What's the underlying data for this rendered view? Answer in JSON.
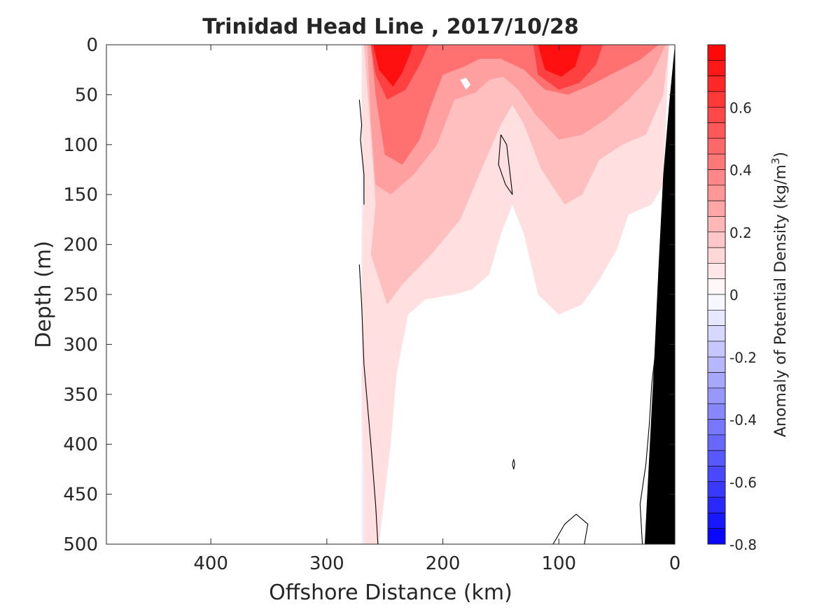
{
  "chart_data": {
    "type": "heatmap",
    "title": "Trinidad Head Line , 2017/10/28",
    "xlabel": "Offshore Distance (km)",
    "ylabel": "Depth (m)",
    "xlim": [
      490,
      0
    ],
    "ylim": [
      500,
      0
    ],
    "x_ticks": [
      400,
      300,
      200,
      100,
      0
    ],
    "y_ticks": [
      0,
      50,
      100,
      150,
      200,
      250,
      300,
      350,
      400,
      450,
      500
    ],
    "colorbar": {
      "label_prefix": "Anomaly of Potential Density (kg/m",
      "label_sup": "3",
      "label_suffix": ")",
      "range": [
        -0.8,
        0.8
      ],
      "tick_values": [
        0.6,
        0.4,
        0.2,
        0,
        -0.2,
        -0.4,
        -0.6,
        -0.8
      ],
      "tick_labels": [
        "0.6",
        "0.4",
        "0.2",
        "0",
        "-0.2",
        "-0.4",
        "-0.6",
        "-0.8"
      ],
      "step": 0.05,
      "color_max": "#ff0000",
      "color_zero": "#ffffff",
      "color_min": "#0000ff"
    },
    "data_extent_x": [
      270,
      0
    ],
    "bathymetry_color": "#000000",
    "bathymetry": [
      [
        0,
        0
      ],
      [
        5,
        60
      ],
      [
        10,
        130
      ],
      [
        14,
        220
      ],
      [
        18,
        320
      ],
      [
        22,
        410
      ],
      [
        26,
        500
      ],
      [
        0,
        500
      ]
    ],
    "anomaly_regions": [
      {
        "level": 0.1,
        "points": [
          [
            270,
            0
          ],
          [
            270,
            500
          ],
          [
            255,
            500
          ],
          [
            245,
            400
          ],
          [
            240,
            330
          ],
          [
            230,
            270
          ],
          [
            215,
            255
          ],
          [
            190,
            250
          ],
          [
            175,
            245
          ],
          [
            160,
            230
          ],
          [
            150,
            190
          ],
          [
            140,
            160
          ],
          [
            130,
            190
          ],
          [
            118,
            250
          ],
          [
            100,
            270
          ],
          [
            80,
            260
          ],
          [
            65,
            235
          ],
          [
            50,
            205
          ],
          [
            40,
            170
          ],
          [
            20,
            160
          ],
          [
            10,
            140
          ],
          [
            5,
            0
          ]
        ]
      },
      {
        "level": 0.2,
        "points": [
          [
            268,
            0
          ],
          [
            262,
            90
          ],
          [
            258,
            160
          ],
          [
            262,
            210
          ],
          [
            248,
            260
          ],
          [
            235,
            240
          ],
          [
            210,
            210
          ],
          [
            185,
            175
          ],
          [
            165,
            120
          ],
          [
            150,
            80
          ],
          [
            140,
            60
          ],
          [
            130,
            80
          ],
          [
            115,
            125
          ],
          [
            95,
            160
          ],
          [
            80,
            150
          ],
          [
            65,
            115
          ],
          [
            45,
            100
          ],
          [
            25,
            90
          ],
          [
            10,
            50
          ],
          [
            5,
            0
          ]
        ]
      },
      {
        "level": 0.3,
        "points": [
          [
            265,
            0
          ],
          [
            262,
            80
          ],
          [
            258,
            140
          ],
          [
            245,
            150
          ],
          [
            225,
            130
          ],
          [
            205,
            100
          ],
          [
            190,
            55
          ],
          [
            172,
            48
          ],
          [
            160,
            35
          ],
          [
            148,
            32
          ],
          [
            135,
            45
          ],
          [
            120,
            70
          ],
          [
            100,
            95
          ],
          [
            80,
            90
          ],
          [
            60,
            75
          ],
          [
            40,
            55
          ],
          [
            20,
            30
          ],
          [
            8,
            0
          ]
        ]
      },
      {
        "level": 0.45,
        "points": [
          [
            262,
            0
          ],
          [
            258,
            50
          ],
          [
            250,
            110
          ],
          [
            235,
            120
          ],
          [
            220,
            95
          ],
          [
            210,
            60
          ],
          [
            200,
            30
          ],
          [
            182,
            22
          ],
          [
            168,
            14
          ],
          [
            150,
            14
          ],
          [
            130,
            25
          ],
          [
            112,
            45
          ],
          [
            92,
            50
          ],
          [
            72,
            40
          ],
          [
            52,
            28
          ],
          [
            30,
            15
          ],
          [
            14,
            0
          ]
        ]
      },
      {
        "level": 0.6,
        "points": [
          [
            262,
            0
          ],
          [
            258,
            30
          ],
          [
            248,
            55
          ],
          [
            232,
            45
          ],
          [
            220,
            20
          ],
          [
            212,
            0
          ]
        ]
      },
      {
        "level": 0.6,
        "points": [
          [
            122,
            0
          ],
          [
            118,
            30
          ],
          [
            100,
            45
          ],
          [
            82,
            38
          ],
          [
            68,
            20
          ],
          [
            62,
            0
          ]
        ]
      },
      {
        "level": 0.75,
        "points": [
          [
            260,
            0
          ],
          [
            255,
            25
          ],
          [
            243,
            42
          ],
          [
            235,
            28
          ],
          [
            228,
            8
          ],
          [
            226,
            0
          ]
        ]
      },
      {
        "level": 0.75,
        "points": [
          [
            118,
            0
          ],
          [
            112,
            25
          ],
          [
            98,
            32
          ],
          [
            86,
            22
          ],
          [
            80,
            0
          ]
        ]
      },
      {
        "level": 0,
        "points": [
          [
            185,
            35
          ],
          [
            180,
            45
          ],
          [
            176,
            40
          ],
          [
            180,
            33
          ]
        ]
      },
      {
        "level": -0.05,
        "points": [
          [
            270,
            100
          ],
          [
            268,
            150
          ],
          [
            270,
            200
          ]
        ]
      },
      {
        "level": -0.05,
        "points": [
          [
            270,
            360
          ],
          [
            268,
            430
          ],
          [
            268,
            500
          ],
          [
            270,
            500
          ]
        ]
      }
    ],
    "contour_lines": [
      [
        [
          272,
          55
        ],
        [
          270,
          80
        ],
        [
          271,
          95
        ],
        [
          268,
          130
        ],
        [
          268,
          160
        ]
      ],
      [
        [
          272,
          220
        ],
        [
          270,
          260
        ],
        [
          268,
          320
        ],
        [
          262,
          400
        ],
        [
          258,
          460
        ],
        [
          256,
          500
        ]
      ],
      [
        [
          150,
          90
        ],
        [
          145,
          100
        ],
        [
          142,
          130
        ],
        [
          140,
          150
        ],
        [
          146,
          140
        ],
        [
          152,
          120
        ],
        [
          150,
          90
        ]
      ],
      [
        [
          140,
          420
        ],
        [
          139,
          425
        ],
        [
          138,
          420
        ],
        [
          139,
          415
        ],
        [
          140,
          420
        ]
      ],
      [
        [
          105,
          500
        ],
        [
          95,
          480
        ],
        [
          85,
          470
        ],
        [
          75,
          480
        ],
        [
          78,
          500
        ]
      ],
      [
        [
          28,
          500
        ],
        [
          30,
          460
        ],
        [
          25,
          420
        ],
        [
          22,
          380
        ],
        [
          20,
          340
        ],
        [
          16,
          300
        ]
      ]
    ]
  }
}
